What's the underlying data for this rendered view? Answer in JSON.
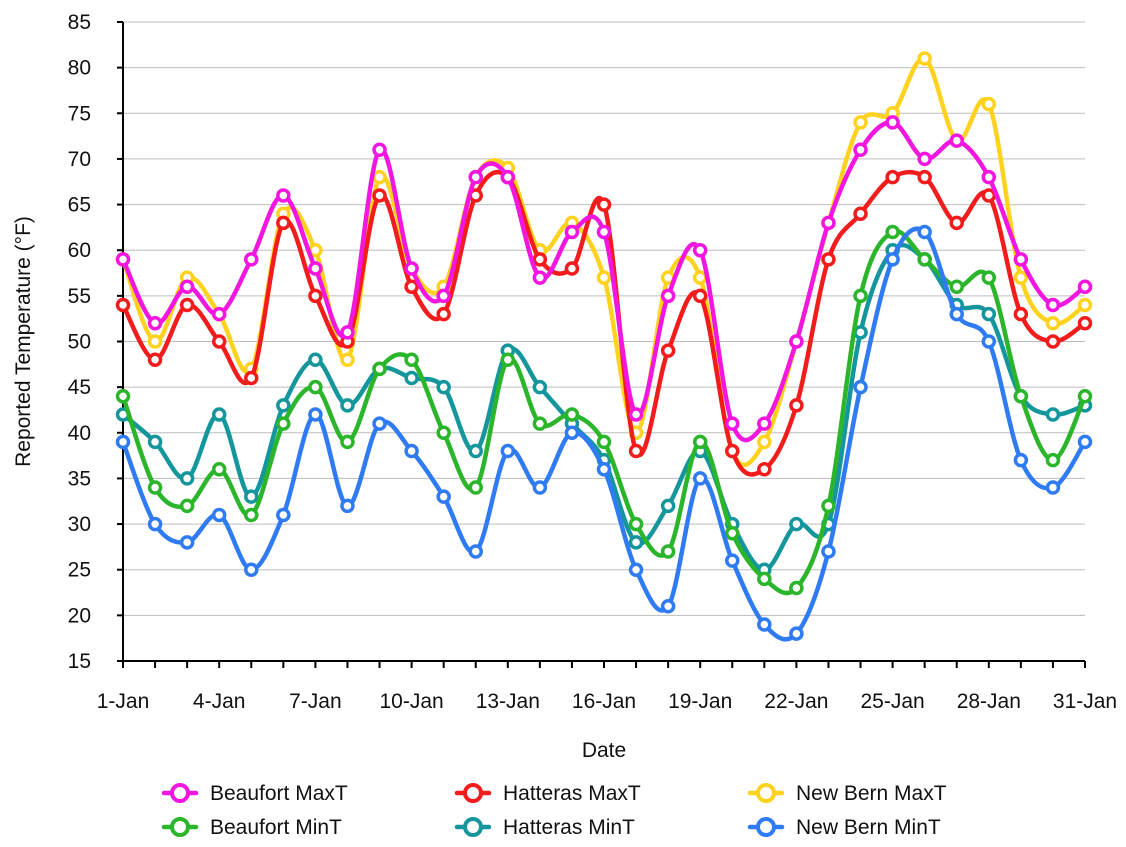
{
  "chart_data": {
    "type": "line",
    "title": "",
    "xlabel": "Date",
    "ylabel": "Reported Temperature (°F)",
    "ylim": [
      15,
      85
    ],
    "y_ticks": [
      15,
      20,
      25,
      30,
      35,
      40,
      45,
      50,
      55,
      60,
      65,
      70,
      75,
      80,
      85
    ],
    "grid": "horizontal",
    "legend_position": "bottom",
    "x_tick_labels": [
      "1-Jan",
      "4-Jan",
      "7-Jan",
      "10-Jan",
      "13-Jan",
      "16-Jan",
      "19-Jan",
      "22-Jan",
      "25-Jan",
      "28-Jan",
      "31-Jan"
    ],
    "x": [
      "1-Jan",
      "2-Jan",
      "3-Jan",
      "4-Jan",
      "5-Jan",
      "6-Jan",
      "7-Jan",
      "8-Jan",
      "9-Jan",
      "10-Jan",
      "11-Jan",
      "12-Jan",
      "13-Jan",
      "14-Jan",
      "15-Jan",
      "16-Jan",
      "17-Jan",
      "18-Jan",
      "19-Jan",
      "20-Jan",
      "21-Jan",
      "22-Jan",
      "23-Jan",
      "24-Jan",
      "25-Jan",
      "26-Jan",
      "27-Jan",
      "28-Jan",
      "29-Jan",
      "30-Jan",
      "31-Jan"
    ],
    "series": [
      {
        "name": "New Bern MaxT",
        "color": "#ffd21f",
        "values": [
          59,
          50,
          57,
          53,
          47,
          64,
          60,
          48,
          68,
          58,
          56,
          68,
          69,
          60,
          63,
          57,
          40,
          57,
          57,
          38,
          39,
          50,
          63,
          74,
          75,
          81,
          72,
          76,
          57,
          52,
          54
        ]
      },
      {
        "name": "Hatteras MaxT",
        "color": "#f31c1c",
        "values": [
          54,
          48,
          54,
          50,
          46,
          63,
          55,
          50,
          66,
          56,
          53,
          66,
          68,
          59,
          58,
          65,
          38,
          49,
          55,
          38,
          36,
          43,
          59,
          64,
          68,
          68,
          63,
          66,
          53,
          50,
          52
        ]
      },
      {
        "name": "Beaufort MaxT",
        "color": "#f315e0",
        "values": [
          59,
          52,
          56,
          53,
          59,
          66,
          58,
          51,
          71,
          58,
          55,
          68,
          68,
          57,
          62,
          62,
          42,
          55,
          60,
          41,
          41,
          50,
          63,
          71,
          74,
          70,
          72,
          68,
          59,
          54,
          56
        ]
      },
      {
        "name": "Hatteras MinT",
        "color": "#14969c",
        "values": [
          42,
          39,
          35,
          42,
          33,
          43,
          48,
          43,
          47,
          46,
          45,
          38,
          49,
          45,
          41,
          37,
          28,
          32,
          38,
          30,
          25,
          30,
          30,
          51,
          60,
          59,
          54,
          53,
          44,
          42,
          43
        ]
      },
      {
        "name": "Beaufort MinT",
        "color": "#2ab52a",
        "values": [
          44,
          34,
          32,
          36,
          31,
          41,
          45,
          39,
          47,
          48,
          40,
          34,
          48,
          41,
          42,
          39,
          30,
          27,
          39,
          29,
          24,
          23,
          32,
          55,
          62,
          59,
          56,
          57,
          44,
          37,
          44
        ]
      },
      {
        "name": "New Bern MinT",
        "color": "#2f7bf3",
        "values": [
          39,
          30,
          28,
          31,
          25,
          31,
          42,
          32,
          41,
          38,
          33,
          27,
          38,
          34,
          40,
          36,
          25,
          21,
          35,
          26,
          19,
          18,
          27,
          45,
          59,
          62,
          53,
          50,
          37,
          34,
          39
        ]
      }
    ],
    "legend_order": [
      "Beaufort MaxT",
      "Hatteras MaxT",
      "New Bern MaxT",
      "Beaufort MinT",
      "Hatteras MinT",
      "New Bern MinT"
    ]
  }
}
